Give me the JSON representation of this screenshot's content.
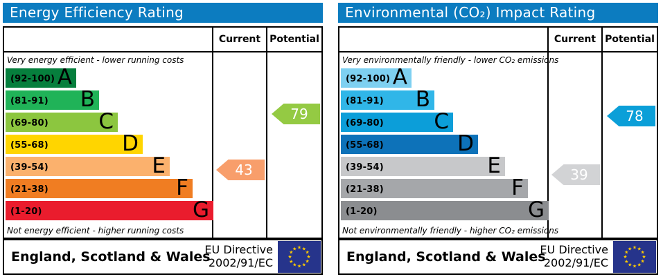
{
  "colors": {
    "header_bg": "#0c7cc0",
    "flag_bg": "#26348b",
    "flag_star": "#ffcc00"
  },
  "chart_data": [
    {
      "type": "bar",
      "title": "Energy Efficiency Rating",
      "columns": [
        "Current",
        "Potential"
      ],
      "top_note": "Very energy efficient - lower running costs",
      "bottom_note": "Not energy efficient - higher running costs",
      "bands": [
        {
          "label": "(92-100)",
          "letter": "A",
          "min": 92,
          "max": 100,
          "color": "#067f3d",
          "width_pct": 34
        },
        {
          "label": "(81-91)",
          "letter": "B",
          "min": 81,
          "max": 91,
          "color": "#20b358",
          "width_pct": 45
        },
        {
          "label": "(69-80)",
          "letter": "C",
          "min": 69,
          "max": 80,
          "color": "#8cc63f",
          "width_pct": 54
        },
        {
          "label": "(55-68)",
          "letter": "D",
          "min": 55,
          "max": 68,
          "color": "#ffd500",
          "width_pct": 66
        },
        {
          "label": "(39-54)",
          "letter": "E",
          "min": 39,
          "max": 54,
          "color": "#fbb16d",
          "width_pct": 79
        },
        {
          "label": "(21-38)",
          "letter": "F",
          "min": 21,
          "max": 38,
          "color": "#f07d22",
          "width_pct": 90
        },
        {
          "label": "(1-20)",
          "letter": "G",
          "min": 1,
          "max": 20,
          "color": "#ea1c2d",
          "width_pct": 100
        }
      ],
      "current": {
        "value": 43,
        "color": "#f89e6b"
      },
      "potential": {
        "value": 79,
        "color": "#94ca43"
      },
      "footer_region": "England, Scotland & Wales",
      "directive_line1": "EU Directive",
      "directive_line2": "2002/91/EC"
    },
    {
      "type": "bar",
      "title": "Environmental (CO₂) Impact Rating",
      "columns": [
        "Current",
        "Potential"
      ],
      "top_note": "Very environmentally friendly - lower CO₂ emissions",
      "bottom_note": "Not environmentally friendly - higher CO₂ emissions",
      "bands": [
        {
          "label": "(92-100)",
          "letter": "A",
          "min": 92,
          "max": 100,
          "color": "#7ed0f1",
          "width_pct": 34
        },
        {
          "label": "(81-91)",
          "letter": "B",
          "min": 81,
          "max": 91,
          "color": "#30b6e8",
          "width_pct": 45
        },
        {
          "label": "(69-80)",
          "letter": "C",
          "min": 69,
          "max": 80,
          "color": "#0c9ed9",
          "width_pct": 54
        },
        {
          "label": "(55-68)",
          "letter": "D",
          "min": 55,
          "max": 68,
          "color": "#0d72b9",
          "width_pct": 66
        },
        {
          "label": "(39-54)",
          "letter": "E",
          "min": 39,
          "max": 54,
          "color": "#c7c8ca",
          "width_pct": 79
        },
        {
          "label": "(21-38)",
          "letter": "F",
          "min": 21,
          "max": 38,
          "color": "#a5a7aa",
          "width_pct": 90
        },
        {
          "label": "(1-20)",
          "letter": "G",
          "min": 1,
          "max": 20,
          "color": "#8b8d90",
          "width_pct": 100
        }
      ],
      "current": {
        "value": 39,
        "color": "#d2d3d5"
      },
      "potential": {
        "value": 78,
        "color": "#0b9fd8"
      },
      "footer_region": "England, Scotland & Wales",
      "directive_line1": "EU Directive",
      "directive_line2": "2002/91/EC"
    }
  ]
}
